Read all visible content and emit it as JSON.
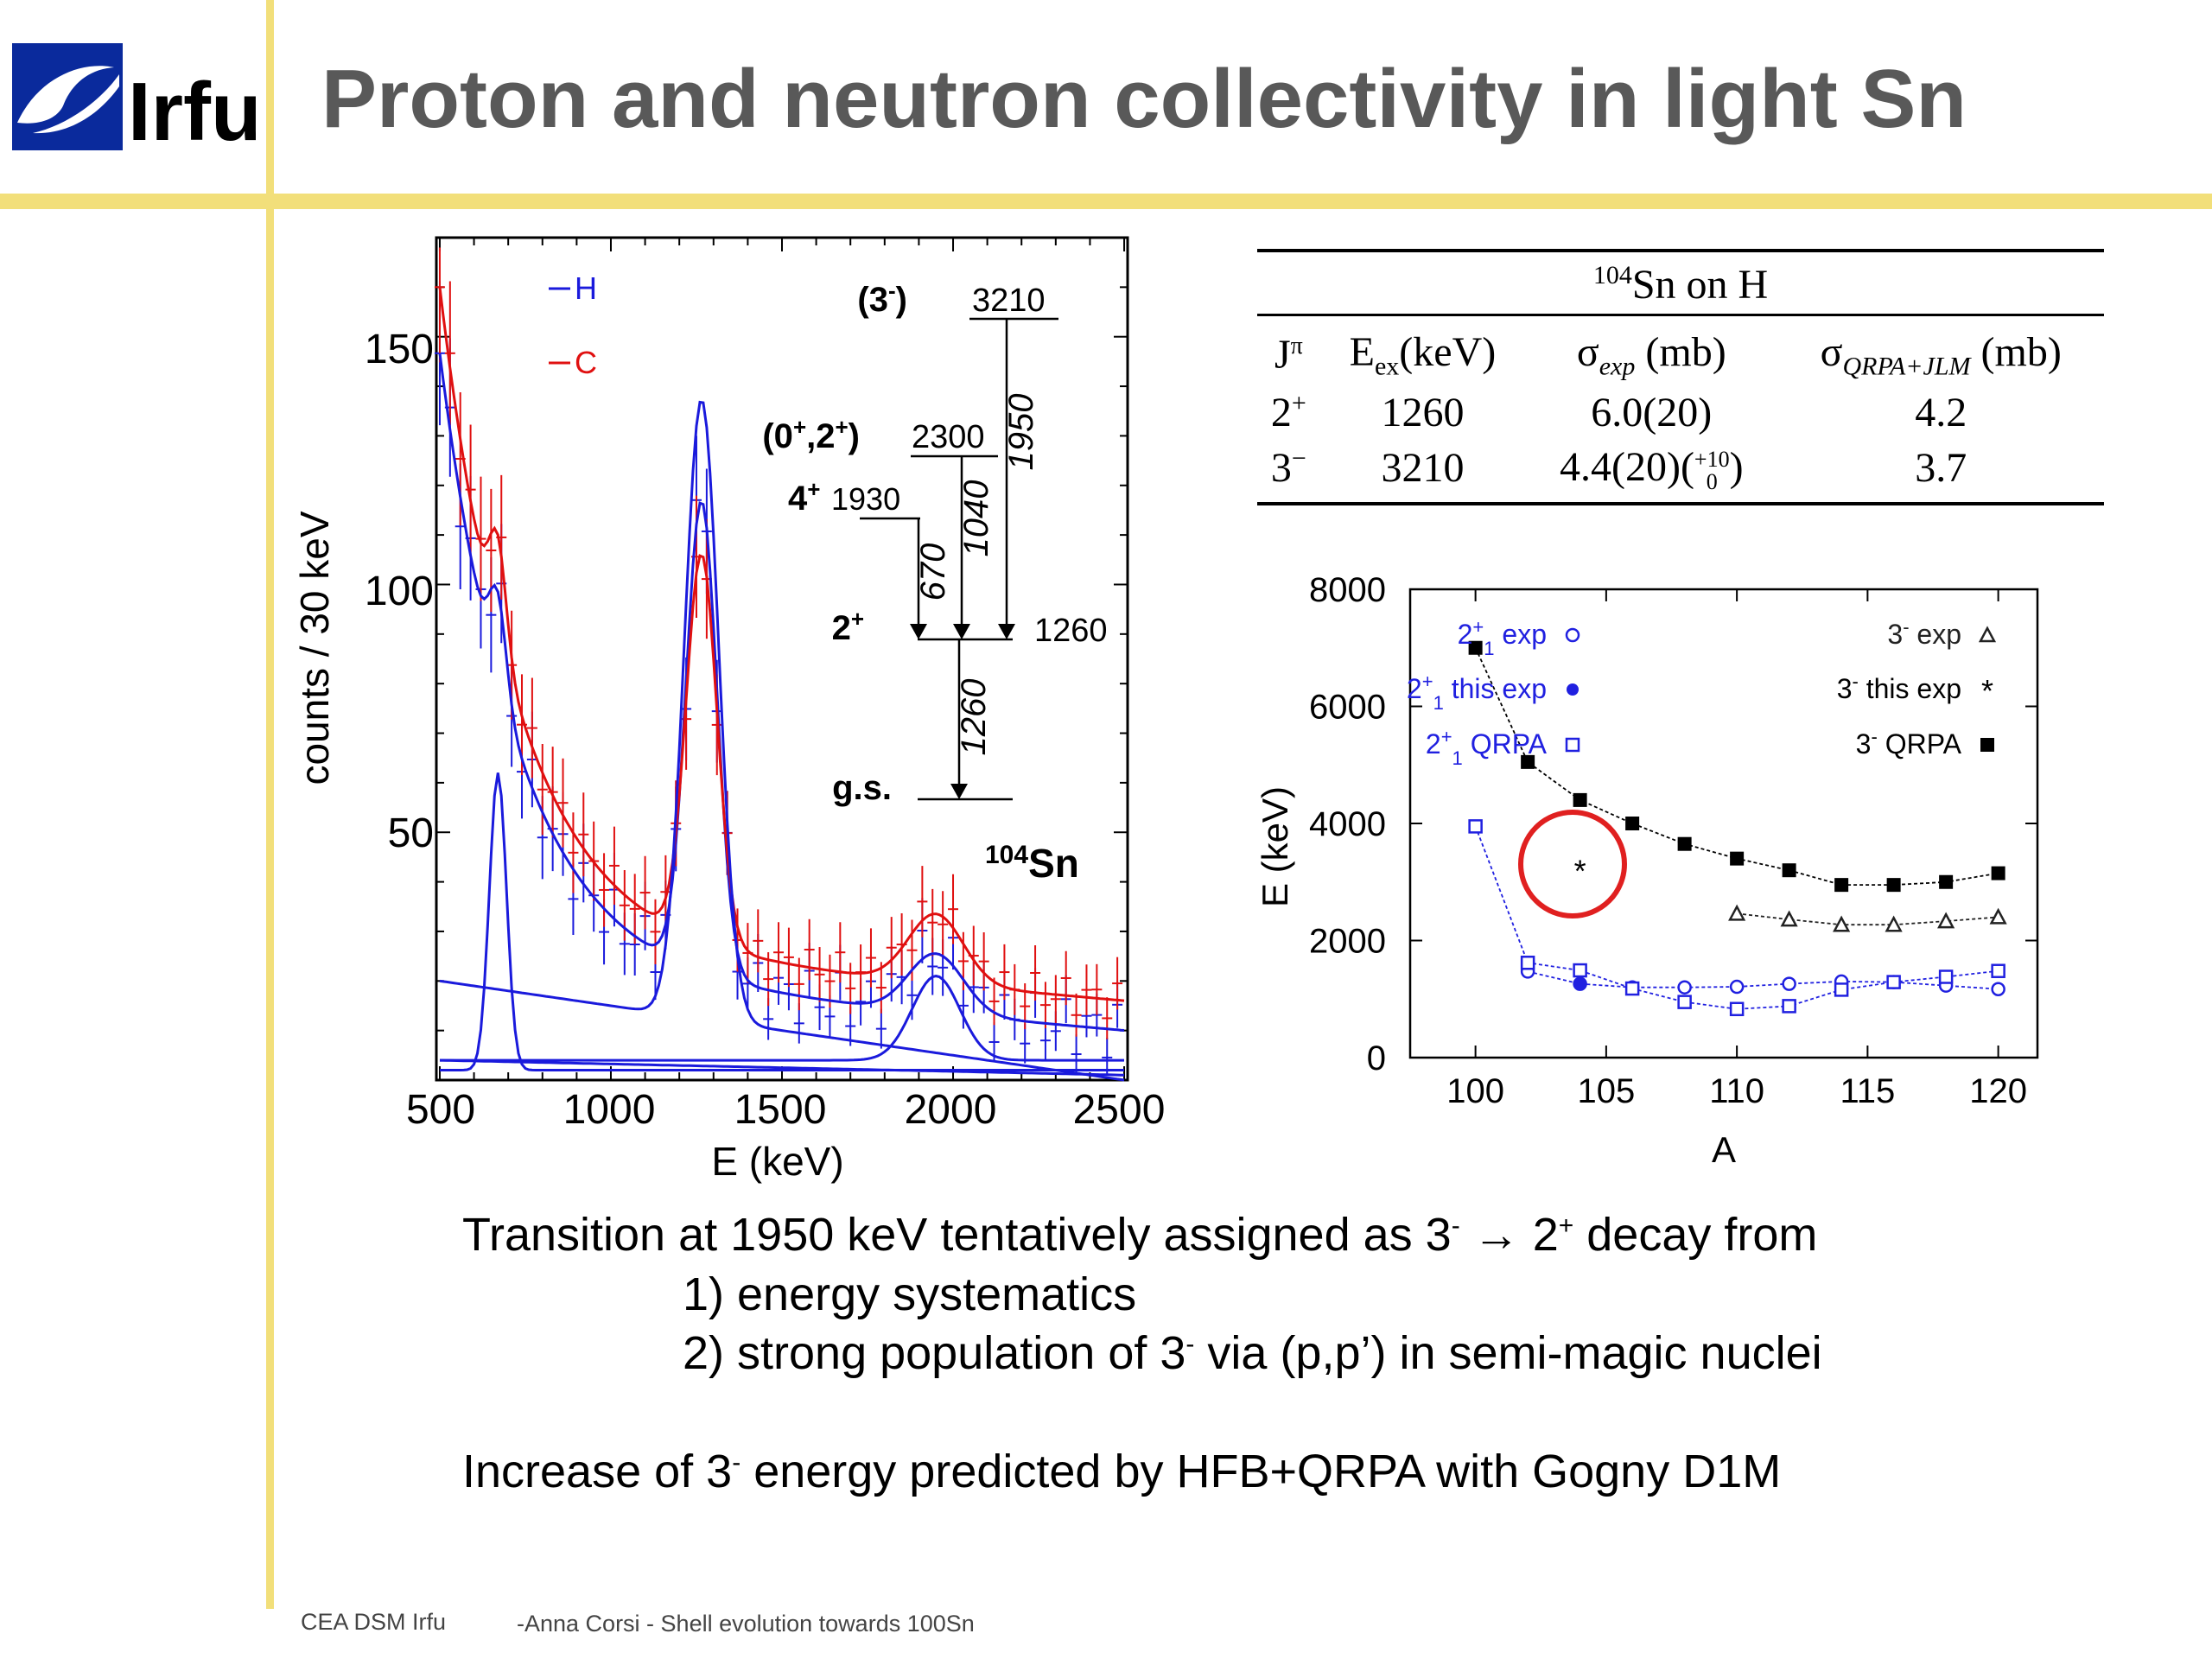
{
  "slide": {
    "title": "Proton and neutron collectivity in light Sn",
    "logo_text": "Irfu",
    "footer_org": "CEA DSM Irfu",
    "footer_talk": "-Anna Corsi -   Shell evolution towards 100Sn"
  },
  "colors": {
    "accent_bar": "#f2df7a",
    "title": "#595959",
    "H": "#1a1adc",
    "C": "#e01010",
    "circle": "#e02020"
  },
  "text": {
    "line1_a": "Transition at 1950 keV tentatively assigned as 3",
    "line1_sup1": "-",
    "line1_b": " → 2",
    "line1_sup2": "+",
    "line1_c": " decay  from",
    "line2": "1) energy systematics",
    "line3_a": "2) strong population of 3",
    "line3_sup": "-",
    "line3_b": " via (p,p’) in semi-magic nuclei",
    "line4_a": "Increase of 3",
    "line4_sup": "-",
    "line4_b": " energy predicted by HFB+QRPA with Gogny D1M"
  },
  "spectrum": {
    "xlabel": "E (keV)",
    "ylabel": "counts / 30 keV",
    "xticks": [
      "500",
      "1000",
      "1500",
      "2000",
      "2500"
    ],
    "yticks": [
      "50",
      "100",
      "150"
    ],
    "legend": [
      "H",
      "C"
    ],
    "nucleus_mass": "104",
    "nucleus_sym": "Sn"
  },
  "level_scheme": {
    "levels": [
      {
        "spin": "(3",
        "spin_sup": "-",
        "spin_end": ")",
        "energy": "3210"
      },
      {
        "spin": "(0",
        "spin_sup": "+",
        "spin_mid": ",2",
        "spin_sup2": "+",
        "spin_end": ")",
        "energy": "2300"
      },
      {
        "spin": "4",
        "spin_sup": "+",
        "energy": "1930"
      },
      {
        "spin": "2",
        "spin_sup": "+",
        "energy": "1260"
      },
      {
        "spin": "g.s.",
        "energy": ""
      }
    ],
    "transitions": [
      "1950",
      "1040",
      "670",
      "1260"
    ]
  },
  "table": {
    "caption_mass": "104",
    "caption_rest": "Sn on H",
    "headers": [
      "J",
      "E",
      "σ",
      "σ"
    ],
    "header_sup": "π",
    "header_e_sub": "ex",
    "header_e_unit": "(keV)",
    "header_sexp_sub": "exp",
    "header_sexp_unit": " (mb)",
    "header_sq_sub": "QRPA+JLM",
    "header_sq_unit": " (mb)",
    "rows": [
      {
        "j": "2",
        "j_sup": "+",
        "e": "1260",
        "s": "6.0(20)",
        "q": "4.2"
      },
      {
        "j": "3",
        "j_sup": "−",
        "e": "3210",
        "s": "4.4(20)(",
        "s_sup": "+10",
        "s_sub": "0",
        "s_end": ")",
        "q": "3.7"
      }
    ]
  },
  "chart_data": {
    "type": "scatter",
    "xlabel": "A",
    "ylabel": "E (keV)",
    "xlim": [
      97.5,
      121.5
    ],
    "ylim": [
      0,
      8000
    ],
    "xticks": [
      100,
      105,
      110,
      115,
      120
    ],
    "yticks": [
      0,
      2000,
      4000,
      6000,
      8000
    ],
    "series": [
      {
        "name": "2+1 exp",
        "label_main": "2",
        "label_sup": "+",
        "label_sub": "1",
        "label_rest": " exp",
        "marker": "open-circle",
        "color": "#2020e0",
        "x": [
          102,
          104,
          106,
          108,
          110,
          112,
          114,
          116,
          118,
          120
        ],
        "y": [
          1470,
          1260,
          1200,
          1200,
          1210,
          1260,
          1300,
          1290,
          1230,
          1170
        ]
      },
      {
        "name": "2+1 this exp",
        "label_main": "2",
        "label_sup": "+",
        "label_sub": "1",
        "label_rest": " this exp",
        "marker": "filled-circle",
        "color": "#2020e0",
        "x": [
          104
        ],
        "y": [
          1260
        ]
      },
      {
        "name": "2+1 QRPA",
        "label_main": "2",
        "label_sup": "+",
        "label_sub": "1",
        "label_rest": " QRPA",
        "marker": "open-square",
        "color": "#2020e0",
        "x": [
          100,
          102,
          104,
          106,
          108,
          110,
          112,
          114,
          116,
          118,
          120
        ],
        "y": [
          3950,
          1620,
          1490,
          1180,
          950,
          830,
          880,
          1160,
          1290,
          1380,
          1480
        ]
      },
      {
        "name": "3- exp",
        "label_main": "3",
        "label_sup": "-",
        "label_sub": "",
        "label_rest": " exp",
        "marker": "open-triangle",
        "color": "#222222",
        "x": [
          110,
          112,
          114,
          116,
          118,
          120
        ],
        "y": [
          2460,
          2360,
          2270,
          2270,
          2330,
          2400
        ]
      },
      {
        "name": "3- this exp",
        "label_main": "3",
        "label_sup": "-",
        "label_sub": "",
        "label_rest": " this exp",
        "marker": "star",
        "color": "#000000",
        "x": [
          104
        ],
        "y": [
          3210
        ]
      },
      {
        "name": "3- QRPA",
        "label_main": "3",
        "label_sup": "-",
        "label_sub": "",
        "label_rest": " QRPA",
        "marker": "filled-square",
        "color": "#000000",
        "x": [
          100,
          102,
          104,
          106,
          108,
          110,
          112,
          114,
          116,
          118,
          120
        ],
        "y": [
          7000,
          5050,
          4400,
          4000,
          3650,
          3400,
          3200,
          2950,
          2950,
          3000,
          3150
        ]
      }
    ]
  }
}
